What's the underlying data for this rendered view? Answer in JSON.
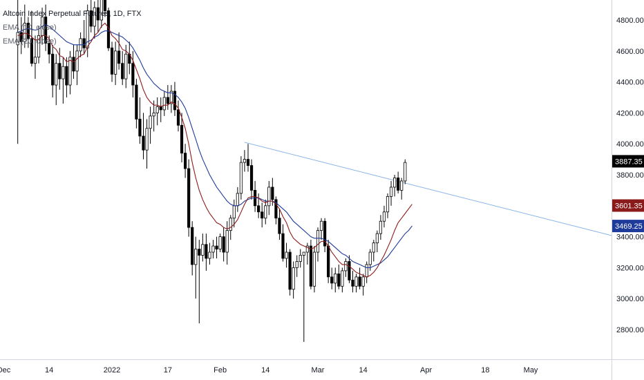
{
  "chart_data": {
    "type": "candlestick",
    "title": "Altcoin Index Perpetual Futures, 1D, FTX",
    "indicators": [
      {
        "name": "EMA (10, close)",
        "color": "#8b1a1a"
      },
      {
        "name": "EMA (20, close)",
        "color": "#1e3a9a"
      }
    ],
    "y_ticks": [
      "4800.00",
      "4600.00",
      "4400.00",
      "4200.00",
      "4000.00",
      "3800.00",
      "3600.00",
      "3400.00",
      "3200.00",
      "3000.00",
      "2800.00"
    ],
    "y_tick_values": [
      4800,
      4600,
      4400,
      4200,
      4000,
      3800,
      3600,
      3400,
      3200,
      3000,
      2800
    ],
    "ylim": [
      2680,
      4980
    ],
    "x_ticks": [
      {
        "label": "Dec",
        "index": 0
      },
      {
        "label": "14",
        "index": 13
      },
      {
        "label": "2022",
        "index": 31
      },
      {
        "label": "17",
        "index": 47
      },
      {
        "label": "Feb",
        "index": 62
      },
      {
        "label": "14",
        "index": 75
      },
      {
        "label": "Mar",
        "index": 90
      },
      {
        "label": "14",
        "index": 103
      },
      {
        "label": "Apr",
        "index": 121
      },
      {
        "label": "18",
        "index": 138
      },
      {
        "label": "May",
        "index": 151
      }
    ],
    "price_labels": [
      {
        "value": 3887.35,
        "text": "3887.35",
        "color": "#000000"
      },
      {
        "value": 3601.35,
        "text": "3601.35",
        "color": "#8b1a1a"
      },
      {
        "value": 3469.25,
        "text": "3469.25",
        "color": "#1e3a9a"
      }
    ],
    "trendline": {
      "start": {
        "index": 69,
        "value": 4010
      },
      "end": {
        "index": 165,
        "value": 3460
      },
      "color": "#8ab4e8"
    },
    "up_color": "#ffffff",
    "down_color": "#000000",
    "candles_start_index": 4,
    "candles": [
      [
        4640,
        4960,
        4000,
        4720
      ],
      [
        4720,
        4820,
        4580,
        4660
      ],
      [
        4660,
        4900,
        4620,
        4780
      ],
      [
        4780,
        4820,
        4620,
        4680
      ],
      [
        4680,
        4860,
        4500,
        4520
      ],
      [
        4520,
        4700,
        4420,
        4560
      ],
      [
        4560,
        4760,
        4520,
        4700
      ],
      [
        4700,
        4880,
        4640,
        4820
      ],
      [
        4820,
        4900,
        4600,
        4650
      ],
      [
        4650,
        4700,
        4520,
        4580
      ],
      [
        4580,
        4640,
        4300,
        4380
      ],
      [
        4380,
        4580,
        4250,
        4520
      ],
      [
        4520,
        4620,
        4350,
        4420
      ],
      [
        4420,
        4560,
        4260,
        4500
      ],
      [
        4500,
        4560,
        4300,
        4380
      ],
      [
        4380,
        4600,
        4320,
        4560
      ],
      [
        4560,
        4640,
        4420,
        4470
      ],
      [
        4470,
        4640,
        4380,
        4600
      ],
      [
        4600,
        4720,
        4560,
        4680
      ],
      [
        4680,
        4800,
        4580,
        4620
      ],
      [
        4620,
        4900,
        4560,
        4860
      ],
      [
        4860,
        4960,
        4720,
        4760
      ],
      [
        4760,
        4920,
        4680,
        4880
      ],
      [
        4880,
        4950,
        4720,
        4800
      ],
      [
        4800,
        4980,
        4750,
        4940
      ],
      [
        4940,
        4960,
        4820,
        4860
      ],
      [
        4860,
        4880,
        4600,
        4620
      ],
      [
        4620,
        4660,
        4400,
        4450
      ],
      [
        4450,
        4660,
        4380,
        4600
      ],
      [
        4600,
        4720,
        4480,
        4520
      ],
      [
        4520,
        4600,
        4380,
        4420
      ],
      [
        4420,
        4640,
        4360,
        4580
      ],
      [
        4580,
        4660,
        4450,
        4520
      ],
      [
        4520,
        4600,
        4300,
        4380
      ],
      [
        4380,
        4420,
        4100,
        4160
      ],
      [
        4160,
        4300,
        4000,
        4050
      ],
      [
        4050,
        4200,
        3900,
        3960
      ],
      [
        3960,
        4160,
        3840,
        4100
      ],
      [
        4100,
        4240,
        4000,
        4180
      ],
      [
        4180,
        4280,
        4080,
        4200
      ],
      [
        4200,
        4300,
        4120,
        4240
      ],
      [
        4240,
        4300,
        4140,
        4220
      ],
      [
        4220,
        4340,
        4180,
        4300
      ],
      [
        4300,
        4380,
        4220,
        4260
      ],
      [
        4260,
        4380,
        4200,
        4340
      ],
      [
        4340,
        4400,
        4180,
        4220
      ],
      [
        4220,
        4280,
        4080,
        4120
      ],
      [
        4120,
        4200,
        3880,
        3940
      ],
      [
        3940,
        4000,
        3780,
        3840
      ],
      [
        3840,
        3900,
        3400,
        3460
      ],
      [
        3460,
        3500,
        3150,
        3220
      ],
      [
        3220,
        3400,
        3000,
        3320
      ],
      [
        3320,
        3380,
        2840,
        3280
      ],
      [
        3280,
        3420,
        3240,
        3350
      ],
      [
        3350,
        3420,
        3180,
        3260
      ],
      [
        3260,
        3360,
        3220,
        3300
      ],
      [
        3300,
        3380,
        3260,
        3340
      ],
      [
        3340,
        3400,
        3260,
        3320
      ],
      [
        3320,
        3420,
        3300,
        3400
      ],
      [
        3400,
        3460,
        3240,
        3300
      ],
      [
        3300,
        3500,
        3220,
        3440
      ],
      [
        3440,
        3540,
        3380,
        3520
      ],
      [
        3520,
        3640,
        3460,
        3600
      ],
      [
        3600,
        3720,
        3560,
        3680
      ],
      [
        3680,
        3920,
        3640,
        3880
      ],
      [
        3880,
        3960,
        3820,
        3900
      ],
      [
        3900,
        4000,
        3820,
        3860
      ],
      [
        3860,
        3900,
        3640,
        3700
      ],
      [
        3700,
        3760,
        3560,
        3600
      ],
      [
        3600,
        3680,
        3520,
        3560
      ],
      [
        3560,
        3620,
        3460,
        3520
      ],
      [
        3520,
        3640,
        3480,
        3600
      ],
      [
        3600,
        3760,
        3540,
        3720
      ],
      [
        3720,
        3780,
        3600,
        3640
      ],
      [
        3640,
        3660,
        3480,
        3520
      ],
      [
        3520,
        3580,
        3380,
        3420
      ],
      [
        3420,
        3480,
        3240,
        3260
      ],
      [
        3260,
        3360,
        3200,
        3300
      ],
      [
        3300,
        3320,
        3020,
        3060
      ],
      [
        3060,
        3240,
        3000,
        3200
      ],
      [
        3200,
        3280,
        3140,
        3240
      ],
      [
        3240,
        3320,
        3200,
        3280
      ],
      [
        3280,
        3300,
        2720,
        3300
      ],
      [
        3300,
        3360,
        3220,
        3340
      ],
      [
        3340,
        3380,
        3060,
        3080
      ],
      [
        3080,
        3340,
        3040,
        3300
      ],
      [
        3300,
        3460,
        3240,
        3440
      ],
      [
        3440,
        3520,
        3380,
        3500
      ],
      [
        3500,
        3520,
        3300,
        3340
      ],
      [
        3340,
        3380,
        3100,
        3140
      ],
      [
        3140,
        3200,
        3060,
        3100
      ],
      [
        3100,
        3200,
        3040,
        3160
      ],
      [
        3160,
        3220,
        3060,
        3080
      ],
      [
        3080,
        3200,
        3040,
        3180
      ],
      [
        3180,
        3260,
        3140,
        3240
      ],
      [
        3240,
        3280,
        3100,
        3120
      ],
      [
        3120,
        3180,
        3040,
        3080
      ],
      [
        3080,
        3160,
        3040,
        3140
      ],
      [
        3140,
        3200,
        3060,
        3080
      ],
      [
        3080,
        3160,
        3020,
        3140
      ],
      [
        3140,
        3240,
        3100,
        3220
      ],
      [
        3220,
        3320,
        3180,
        3300
      ],
      [
        3300,
        3380,
        3240,
        3360
      ],
      [
        3360,
        3440,
        3300,
        3420
      ],
      [
        3420,
        3540,
        3380,
        3500
      ],
      [
        3500,
        3600,
        3460,
        3560
      ],
      [
        3560,
        3680,
        3520,
        3660
      ],
      [
        3660,
        3760,
        3600,
        3720
      ],
      [
        3720,
        3800,
        3660,
        3780
      ],
      [
        3780,
        3820,
        3680,
        3700
      ],
      [
        3700,
        3780,
        3640,
        3760
      ],
      [
        3760,
        3900,
        3740,
        3880
      ]
    ],
    "ema10": [
      4700,
      4705,
      4715,
      4710,
      4690,
      4670,
      4675,
      4700,
      4700,
      4680,
      4630,
      4610,
      4570,
      4560,
      4530,
      4540,
      4530,
      4550,
      4570,
      4580,
      4630,
      4660,
      4700,
      4720,
      4760,
      4780,
      4750,
      4700,
      4680,
      4650,
      4610,
      4600,
      4580,
      4540,
      4480,
      4420,
      4350,
      4300,
      4270,
      4250,
      4250,
      4240,
      4250,
      4250,
      4270,
      4260,
      4230,
      4170,
      4100,
      4000,
      3880,
      3780,
      3700,
      3640,
      3590,
      3550,
      3520,
      3490,
      3480,
      3460,
      3450,
      3460,
      3480,
      3510,
      3560,
      3610,
      3650,
      3660,
      3660,
      3650,
      3630,
      3620,
      3630,
      3630,
      3610,
      3580,
      3530,
      3490,
      3430,
      3390,
      3370,
      3350,
      3340,
      3330,
      3320,
      3330,
      3350,
      3370,
      3370,
      3340,
      3300,
      3270,
      3240,
      3220,
      3220,
      3210,
      3190,
      3170,
      3160,
      3150,
      3140,
      3150,
      3170,
      3200,
      3240,
      3280,
      3330,
      3380,
      3440,
      3490,
      3520,
      3550,
      3580,
      3610
    ],
    "ema20": [
      4720,
      4730,
      4740,
      4745,
      4740,
      4735,
      4740,
      4760,
      4770,
      4760,
      4740,
      4720,
      4700,
      4680,
      4660,
      4650,
      4640,
      4640,
      4640,
      4640,
      4660,
      4670,
      4690,
      4700,
      4720,
      4730,
      4730,
      4720,
      4710,
      4700,
      4690,
      4670,
      4650,
      4620,
      4580,
      4540,
      4490,
      4450,
      4420,
      4390,
      4370,
      4350,
      4340,
      4330,
      4330,
      4320,
      4300,
      4270,
      4230,
      4170,
      4100,
      4030,
      3960,
      3900,
      3850,
      3800,
      3760,
      3720,
      3690,
      3660,
      3630,
      3610,
      3600,
      3600,
      3610,
      3630,
      3640,
      3650,
      3650,
      3650,
      3640,
      3630,
      3630,
      3630,
      3620,
      3600,
      3580,
      3560,
      3530,
      3500,
      3480,
      3460,
      3440,
      3420,
      3400,
      3390,
      3390,
      3390,
      3380,
      3370,
      3350,
      3330,
      3310,
      3290,
      3280,
      3260,
      3240,
      3230,
      3220,
      3210,
      3200,
      3200,
      3210,
      3220,
      3230,
      3250,
      3270,
      3300,
      3330,
      3360,
      3390,
      3420,
      3440,
      3470
    ]
  }
}
